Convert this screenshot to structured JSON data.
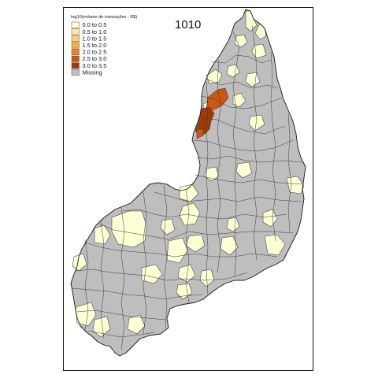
{
  "map": {
    "title": "1010",
    "legend": {
      "title": "log10(volume de transações - R$)",
      "items": [
        {
          "label": "0.0 to 0.5",
          "color": "#FFFFD4"
        },
        {
          "label": "0.5 to 1.0",
          "color": "#FEE7A9"
        },
        {
          "label": "1.0 to 1.5",
          "color": "#FECF72"
        },
        {
          "label": "1.5 to 2.0",
          "color": "#FEA945"
        },
        {
          "label": "2.0 to 2.5",
          "color": "#F1801F"
        },
        {
          "label": "2.5 to 3.0",
          "color": "#CF560D"
        },
        {
          "label": "3.0 to 3.5",
          "color": "#A03A05"
        },
        {
          "label": "Missing",
          "color": "#BEBEBE"
        }
      ]
    }
  }
}
